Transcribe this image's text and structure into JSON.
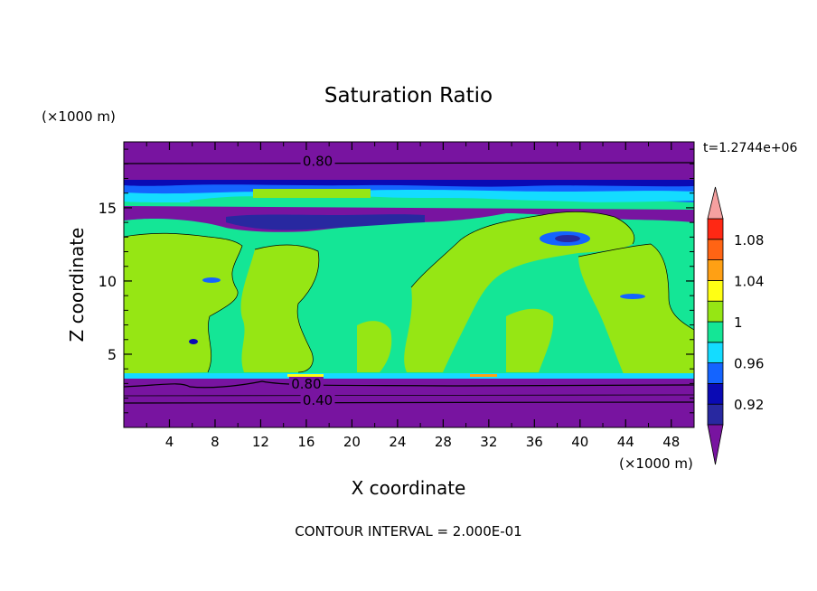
{
  "chart_data": {
    "type": "heatmap",
    "title": "Saturation Ratio",
    "xlabel": "X coordinate",
    "ylabel": "Z coordinate",
    "x_unit": "(×1000 m)",
    "y_unit": "(×1000 m)",
    "time_label": "t=1.2744e+06",
    "footer": "CONTOUR INTERVAL = 2.000E-01",
    "xlim": [
      0,
      50
    ],
    "ylim": [
      0,
      19.5
    ],
    "x_ticks": [
      "4",
      "8",
      "12",
      "16",
      "20",
      "24",
      "28",
      "32",
      "36",
      "40",
      "44",
      "48"
    ],
    "y_ticks": [
      "5",
      "10",
      "15"
    ],
    "x_tick_values": [
      4,
      8,
      12,
      16,
      20,
      24,
      28,
      32,
      36,
      40,
      44,
      48
    ],
    "y_tick_values": [
      5,
      10,
      15
    ],
    "contour_labels": [
      {
        "text": "0.80",
        "x": 17,
        "z": 18.1
      },
      {
        "text": "0.80",
        "x": 16,
        "z": 2.9
      },
      {
        "text": "0.40",
        "x": 17,
        "z": 1.8
      }
    ],
    "colorbar": {
      "levels": [
        0.9,
        0.92,
        0.94,
        0.96,
        0.98,
        1.0,
        1.02,
        1.04,
        1.06,
        1.08,
        1.1
      ],
      "colors": [
        "#2828a0",
        "#0a0ab4",
        "#1464ff",
        "#14dcff",
        "#14e696",
        "#96e614",
        "#ffff14",
        "#ffa014",
        "#ff6414",
        "#ff2814"
      ],
      "under_color": "#7814a0",
      "over_color": "#f5a0a0",
      "tick_labels": [
        "0.92",
        "0.96",
        "1",
        "1.04",
        "1.08"
      ],
      "tick_values": [
        0.92,
        0.96,
        1.0,
        1.04,
        1.08
      ]
    }
  }
}
